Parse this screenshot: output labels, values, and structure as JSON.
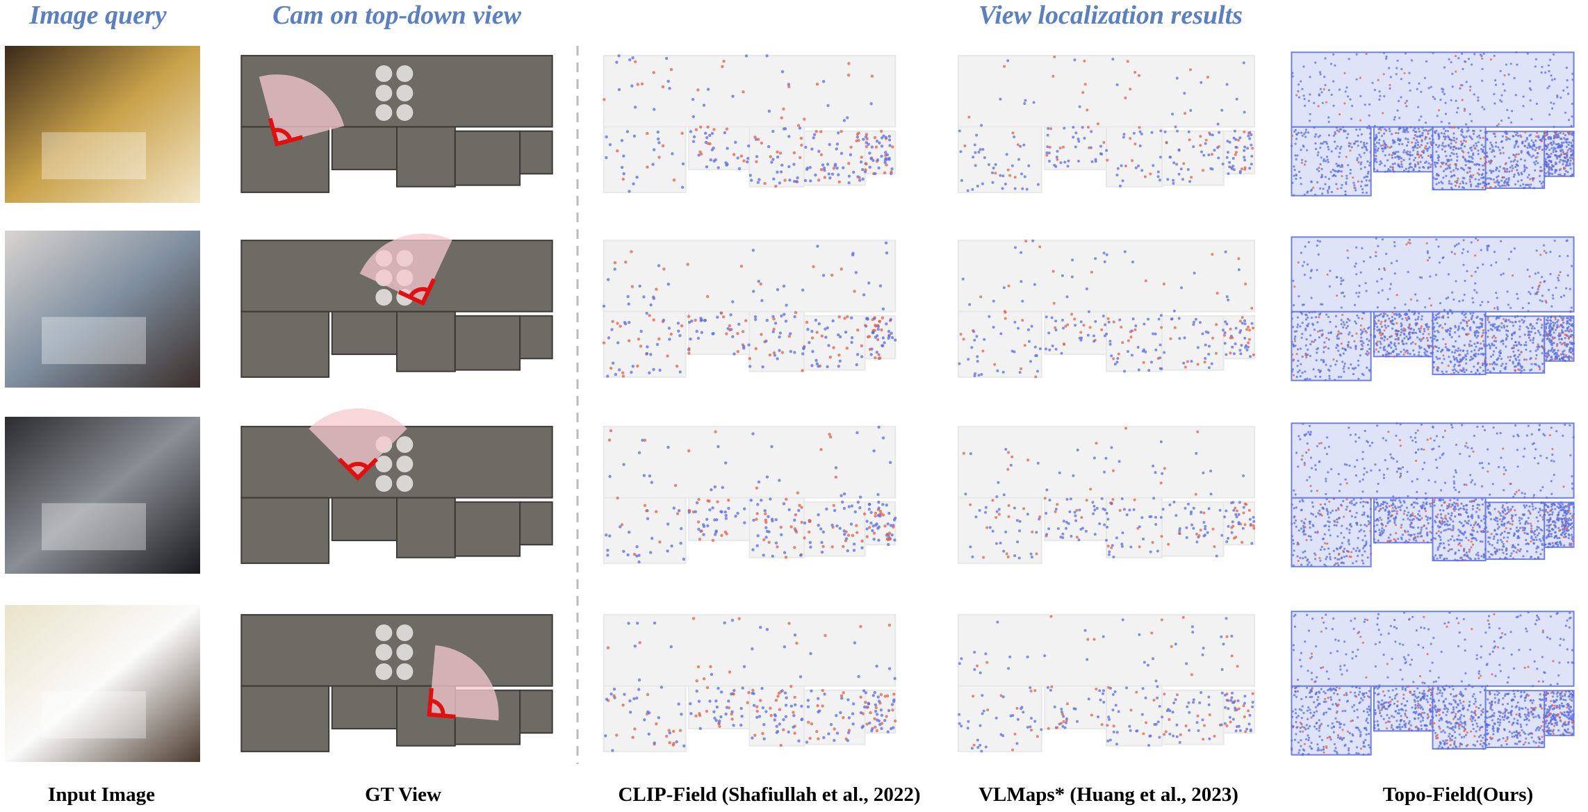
{
  "headers": {
    "image_query": "Image query",
    "cam_view": "Cam on top-down view",
    "localization": "View localization results"
  },
  "columns": [
    "Input Image",
    "GT View",
    "CLIP-Field (Shafiullah et al., 2022)",
    "VLMaps* (Huang et al., 2023)",
    "Topo-Field(Ours)"
  ]
}
